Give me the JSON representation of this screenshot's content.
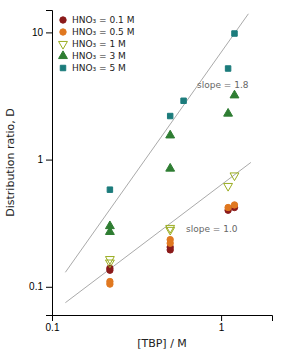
{
  "chart_data": {
    "type": "scatter",
    "xlabel": "[TBP] / M",
    "ylabel": "Distribution ratio, D",
    "log": true,
    "grid": false,
    "legend": "upper left",
    "xlim": [
      0.1,
      2.0
    ],
    "ylim": [
      0.06,
      15
    ],
    "xticks": [
      0.1,
      1
    ],
    "yticks": [
      0.1,
      1,
      10
    ],
    "series": [
      {
        "name": "HNO₃ = 0.1 M",
        "color": "#8B1A1A",
        "marker": "circle",
        "x": [
          0.22,
          0.22,
          0.5,
          0.5,
          1.1,
          1.2
        ],
        "values": [
          0.135,
          0.14,
          0.195,
          0.205,
          0.4,
          0.42
        ]
      },
      {
        "name": "HNO₃ = 0.5 M",
        "color": "#E07820",
        "marker": "circle",
        "x": [
          0.22,
          0.22,
          0.5,
          0.5,
          1.1,
          1.2
        ],
        "values": [
          0.105,
          0.11,
          0.22,
          0.235,
          0.42,
          0.44
        ]
      },
      {
        "name": "HNO₃ = 1 M",
        "color": "#9AAD20",
        "marker": "triangle-down-open",
        "x": [
          0.22,
          0.22,
          0.5,
          0.5,
          1.1,
          1.2
        ],
        "values": [
          0.155,
          0.165,
          0.28,
          0.29,
          0.62,
          0.75
        ]
      },
      {
        "name": "HNO₃ = 3 M",
        "color": "#2E7D32",
        "marker": "triangle-up",
        "x": [
          0.22,
          0.22,
          0.5,
          0.5,
          1.1,
          1.2
        ],
        "values": [
          0.27,
          0.3,
          0.85,
          1.55,
          2.3,
          3.2
        ]
      },
      {
        "name": "HNO₃ = 5 M",
        "color": "#1B7B7B",
        "marker": "square",
        "x": [
          0.22,
          0.5,
          0.6,
          1.1,
          1.2
        ],
        "values": [
          0.58,
          2.2,
          2.9,
          5.2,
          9.8
        ]
      }
    ],
    "lines": [
      {
        "x": [
          0.12,
          1.5
        ],
        "y": [
          0.075,
          0.95
        ],
        "color": "#aaaaaa"
      },
      {
        "x": [
          0.12,
          1.45
        ],
        "y": [
          0.13,
          14.0
        ],
        "color": "#aaaaaa"
      }
    ],
    "annotations": [
      {
        "text": "slope = 1.0",
        "x": 0.62,
        "y": 0.28,
        "color": "#666666"
      },
      {
        "text": "slope = 1.8",
        "x": 0.72,
        "y": 3.8,
        "color": "#666666"
      }
    ]
  }
}
